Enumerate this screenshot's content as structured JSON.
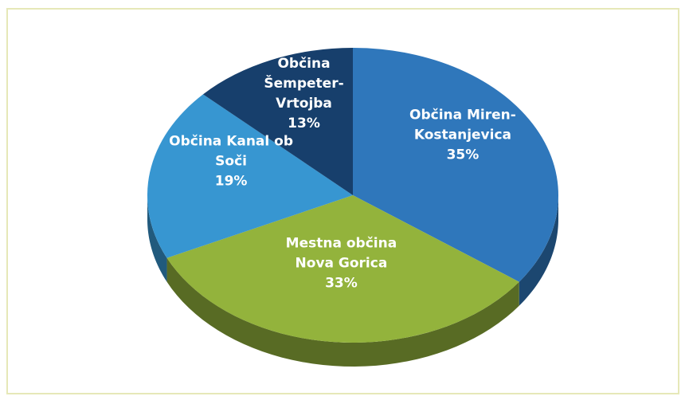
{
  "chart_data": {
    "type": "pie",
    "categories": [
      "Občina Miren-Kostanjevica",
      "Mestna občina Nova Gorica",
      "Občina Kanal ob Soči",
      "Občina Šempeter-Vrtojba"
    ],
    "values": [
      35,
      33,
      19,
      13
    ],
    "value_labels": [
      "35%",
      "33%",
      "19%",
      "13%"
    ],
    "colors": [
      "#2f77bb",
      "#93b33c",
      "#3796d1",
      "#173f6c"
    ]
  }
}
